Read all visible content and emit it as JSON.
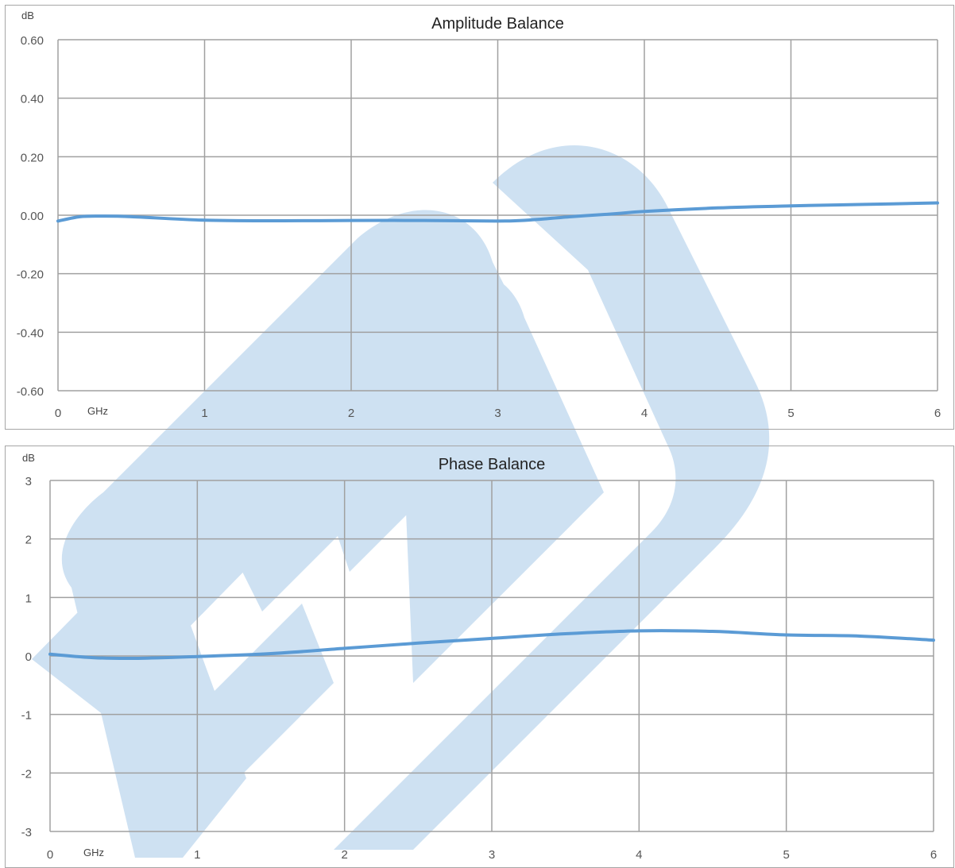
{
  "watermark": {
    "text": "PE",
    "color": "#c6dcf0"
  },
  "chart_data": [
    {
      "type": "line",
      "title": "Amplitude Balance",
      "ylabel": "dB",
      "xlabel": "GHz",
      "xlim": [
        0,
        6
      ],
      "ylim": [
        -0.6,
        0.6
      ],
      "x_ticks": [
        0,
        1,
        2,
        3,
        4,
        5,
        6
      ],
      "x_tick_labels": [
        "0",
        "1",
        "2",
        "3",
        "4",
        "5",
        "6"
      ],
      "y_ticks": [
        -0.6,
        -0.4,
        -0.2,
        0,
        0.2,
        0.4,
        0.6
      ],
      "y_tick_labels": [
        "-0.60",
        "-0.40",
        "-0.20",
        "0.00",
        "0.20",
        "0.40",
        "0.60"
      ],
      "grid": true,
      "series": [
        {
          "color": "#5b9bd5",
          "x": [
            0,
            0.15,
            0.3,
            0.5,
            1.0,
            1.5,
            2.0,
            2.5,
            3.0,
            3.2,
            3.5,
            3.8,
            4.0,
            4.5,
            5.0,
            5.5,
            6.0
          ],
          "y": [
            -0.02,
            -0.005,
            -0.003,
            -0.005,
            -0.017,
            -0.019,
            -0.018,
            -0.018,
            -0.02,
            -0.017,
            -0.005,
            0.005,
            0.013,
            0.025,
            0.032,
            0.037,
            0.042
          ]
        }
      ]
    },
    {
      "type": "line",
      "title": "Phase Balance",
      "ylabel": "dB",
      "xlabel": "GHz",
      "xlim": [
        0,
        6
      ],
      "ylim": [
        -3,
        3
      ],
      "x_ticks": [
        0,
        1,
        2,
        3,
        4,
        5,
        6
      ],
      "x_tick_labels": [
        "0",
        "1",
        "2",
        "3",
        "4",
        "5",
        "6"
      ],
      "y_ticks": [
        -3,
        -2,
        -1,
        0,
        1,
        2,
        3
      ],
      "y_tick_labels": [
        "-3",
        "-2",
        "-1",
        "0",
        "1",
        "2",
        "3"
      ],
      "grid": true,
      "series": [
        {
          "color": "#5b9bd5",
          "x": [
            0,
            0.3,
            0.6,
            1.0,
            1.5,
            2.0,
            2.5,
            3.0,
            3.5,
            4.0,
            4.5,
            5.0,
            5.5,
            6.0
          ],
          "y": [
            0.03,
            -0.03,
            -0.04,
            -0.01,
            0.04,
            0.13,
            0.22,
            0.3,
            0.38,
            0.43,
            0.42,
            0.36,
            0.34,
            0.27
          ]
        }
      ]
    }
  ]
}
